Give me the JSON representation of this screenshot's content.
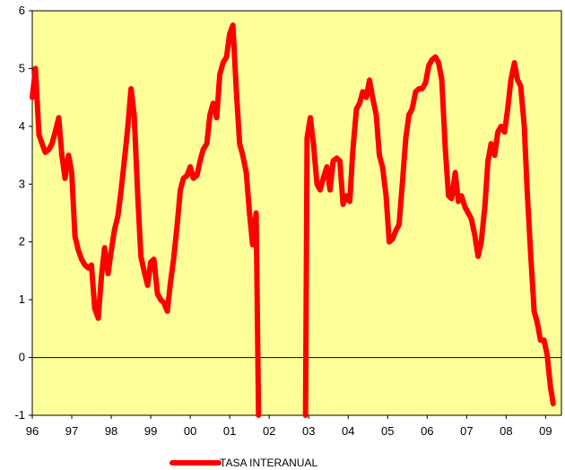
{
  "chart_data": {
    "type": "line",
    "title": "",
    "xlabel": "",
    "ylabel": "",
    "x_tick_labels": [
      "96",
      "97",
      "98",
      "99",
      "00",
      "01",
      "02",
      "03",
      "04",
      "05",
      "06",
      "07",
      "08",
      "09"
    ],
    "y_tick_labels": [
      "-1",
      "0",
      "1",
      "2",
      "3",
      "4",
      "5",
      "6"
    ],
    "xlim": [
      1996.0,
      2009.4
    ],
    "ylim": [
      -1,
      6
    ],
    "grid": false,
    "legend_position": "bottom-center",
    "colors": {
      "plot_bg": "#ffff99",
      "line": "#ff0000",
      "zero_line": "#000000"
    },
    "series": [
      {
        "name": "TASA INTERANUAL",
        "segments": [
          [
            [
              1996.0,
              4.5
            ],
            [
              1996.08,
              5.0
            ],
            [
              1996.17,
              3.85
            ],
            [
              1996.25,
              3.7
            ],
            [
              1996.33,
              3.55
            ],
            [
              1996.42,
              3.6
            ],
            [
              1996.5,
              3.7
            ],
            [
              1996.58,
              3.9
            ],
            [
              1996.67,
              4.15
            ],
            [
              1996.75,
              3.5
            ],
            [
              1996.83,
              3.1
            ],
            [
              1996.92,
              3.5
            ],
            [
              1997.0,
              3.2
            ],
            [
              1997.08,
              2.1
            ],
            [
              1997.17,
              1.85
            ],
            [
              1997.25,
              1.7
            ],
            [
              1997.33,
              1.6
            ],
            [
              1997.42,
              1.55
            ],
            [
              1997.5,
              1.6
            ],
            [
              1997.58,
              0.85
            ],
            [
              1997.67,
              0.68
            ],
            [
              1997.75,
              1.4
            ],
            [
              1997.83,
              1.9
            ],
            [
              1997.92,
              1.45
            ],
            [
              1998.0,
              1.85
            ],
            [
              1998.08,
              2.2
            ],
            [
              1998.17,
              2.45
            ],
            [
              1998.25,
              2.9
            ],
            [
              1998.33,
              3.4
            ],
            [
              1998.42,
              4.0
            ],
            [
              1998.5,
              4.65
            ],
            [
              1998.58,
              4.2
            ],
            [
              1998.67,
              2.8
            ],
            [
              1998.75,
              1.75
            ],
            [
              1998.83,
              1.5
            ],
            [
              1998.92,
              1.25
            ],
            [
              1999.0,
              1.65
            ],
            [
              1999.08,
              1.7
            ],
            [
              1999.17,
              1.1
            ],
            [
              1999.25,
              1.0
            ],
            [
              1999.33,
              0.95
            ],
            [
              1999.42,
              0.8
            ],
            [
              1999.5,
              1.3
            ],
            [
              1999.58,
              1.7
            ],
            [
              1999.67,
              2.3
            ],
            [
              1999.75,
              2.9
            ],
            [
              1999.83,
              3.1
            ],
            [
              1999.92,
              3.15
            ],
            [
              2000.0,
              3.3
            ],
            [
              2000.08,
              3.1
            ],
            [
              2000.17,
              3.15
            ],
            [
              2000.25,
              3.4
            ],
            [
              2000.33,
              3.6
            ],
            [
              2000.42,
              3.7
            ],
            [
              2000.5,
              4.2
            ],
            [
              2000.58,
              4.4
            ],
            [
              2000.67,
              4.15
            ],
            [
              2000.75,
              4.9
            ],
            [
              2000.83,
              5.1
            ],
            [
              2000.92,
              5.2
            ],
            [
              2001.0,
              5.6
            ],
            [
              2001.08,
              5.75
            ],
            [
              2001.17,
              4.6
            ],
            [
              2001.25,
              3.7
            ],
            [
              2001.33,
              3.5
            ],
            [
              2001.42,
              3.2
            ],
            [
              2001.5,
              2.5
            ],
            [
              2001.58,
              1.95
            ],
            [
              2001.67,
              2.5
            ],
            [
              2001.73,
              -1.0
            ]
          ],
          [
            [
              2002.92,
              -1.0
            ],
            [
              2002.96,
              3.8
            ],
            [
              2003.04,
              4.15
            ],
            [
              2003.12,
              3.7
            ],
            [
              2003.21,
              3.0
            ],
            [
              2003.29,
              2.9
            ],
            [
              2003.37,
              3.1
            ],
            [
              2003.46,
              3.3
            ],
            [
              2003.54,
              2.9
            ],
            [
              2003.62,
              3.4
            ],
            [
              2003.71,
              3.45
            ],
            [
              2003.79,
              3.4
            ],
            [
              2003.87,
              2.65
            ],
            [
              2003.96,
              2.8
            ],
            [
              2004.04,
              2.7
            ],
            [
              2004.12,
              3.6
            ],
            [
              2004.21,
              4.3
            ],
            [
              2004.29,
              4.4
            ],
            [
              2004.37,
              4.6
            ],
            [
              2004.46,
              4.5
            ],
            [
              2004.54,
              4.8
            ],
            [
              2004.62,
              4.5
            ],
            [
              2004.71,
              4.2
            ],
            [
              2004.79,
              3.5
            ],
            [
              2004.87,
              3.3
            ],
            [
              2004.96,
              2.8
            ],
            [
              2005.04,
              2.0
            ],
            [
              2005.12,
              2.05
            ],
            [
              2005.21,
              2.2
            ],
            [
              2005.29,
              2.3
            ],
            [
              2005.37,
              3.0
            ],
            [
              2005.46,
              3.8
            ],
            [
              2005.54,
              4.2
            ],
            [
              2005.62,
              4.3
            ],
            [
              2005.71,
              4.6
            ],
            [
              2005.79,
              4.65
            ],
            [
              2005.87,
              4.65
            ],
            [
              2005.96,
              4.75
            ],
            [
              2006.04,
              5.05
            ],
            [
              2006.12,
              5.15
            ],
            [
              2006.21,
              5.2
            ],
            [
              2006.29,
              5.1
            ],
            [
              2006.37,
              4.8
            ],
            [
              2006.46,
              3.6
            ],
            [
              2006.54,
              2.8
            ],
            [
              2006.62,
              2.75
            ],
            [
              2006.71,
              3.2
            ],
            [
              2006.79,
              2.7
            ],
            [
              2006.87,
              2.8
            ],
            [
              2006.96,
              2.6
            ],
            [
              2007.04,
              2.5
            ],
            [
              2007.12,
              2.4
            ],
            [
              2007.21,
              2.1
            ],
            [
              2007.29,
              1.75
            ],
            [
              2007.37,
              2.0
            ],
            [
              2007.46,
              2.6
            ],
            [
              2007.54,
              3.4
            ],
            [
              2007.62,
              3.7
            ],
            [
              2007.71,
              3.5
            ],
            [
              2007.79,
              3.9
            ],
            [
              2007.87,
              4.0
            ],
            [
              2007.96,
              3.9
            ],
            [
              2008.04,
              4.3
            ],
            [
              2008.12,
              4.8
            ],
            [
              2008.21,
              5.1
            ],
            [
              2008.29,
              4.8
            ],
            [
              2008.37,
              4.7
            ],
            [
              2008.46,
              4.0
            ],
            [
              2008.54,
              2.8
            ],
            [
              2008.62,
              1.8
            ],
            [
              2008.71,
              0.8
            ],
            [
              2008.79,
              0.6
            ],
            [
              2008.87,
              0.3
            ],
            [
              2008.96,
              0.3
            ],
            [
              2009.04,
              0.05
            ],
            [
              2009.12,
              -0.5
            ],
            [
              2009.19,
              -0.8
            ]
          ]
        ]
      }
    ]
  }
}
